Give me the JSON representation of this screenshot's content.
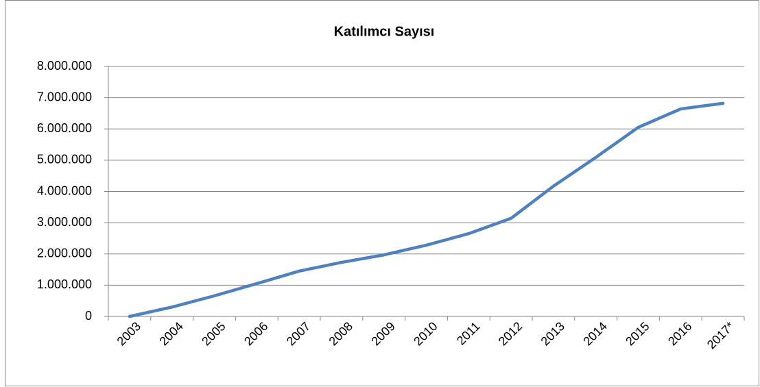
{
  "chart_data": {
    "type": "line",
    "title": "Katılımcı Sayısı",
    "categories": [
      "2003",
      "2004",
      "2005",
      "2006",
      "2007",
      "2008",
      "2009",
      "2010",
      "2011",
      "2012",
      "2013",
      "2014",
      "2015",
      "2016",
      "2017*"
    ],
    "series": [
      {
        "name": "Katılımcı Sayısı",
        "color": "#4f81bd",
        "values": [
          0,
          300000,
          660000,
          1050000,
          1450000,
          1730000,
          1970000,
          2280000,
          2650000,
          3140000,
          4170000,
          5090000,
          6050000,
          6640000,
          6820000
        ]
      }
    ],
    "ylim": [
      0,
      8000000
    ],
    "yticks": [
      0,
      {
        "value": 1000000,
        "label": "1.000.000"
      },
      {
        "value": 2000000,
        "label": "2.000.000"
      },
      {
        "value": 3000000,
        "label": "3.000.000"
      },
      {
        "value": 4000000,
        "label": "4.000.000"
      },
      {
        "value": 5000000,
        "label": "5.000.000"
      },
      {
        "value": 6000000,
        "label": "6.000.000"
      },
      {
        "value": 7000000,
        "label": "7.000.000"
      },
      {
        "value": 8000000,
        "label": "8.000.000"
      }
    ],
    "grid": true
  }
}
